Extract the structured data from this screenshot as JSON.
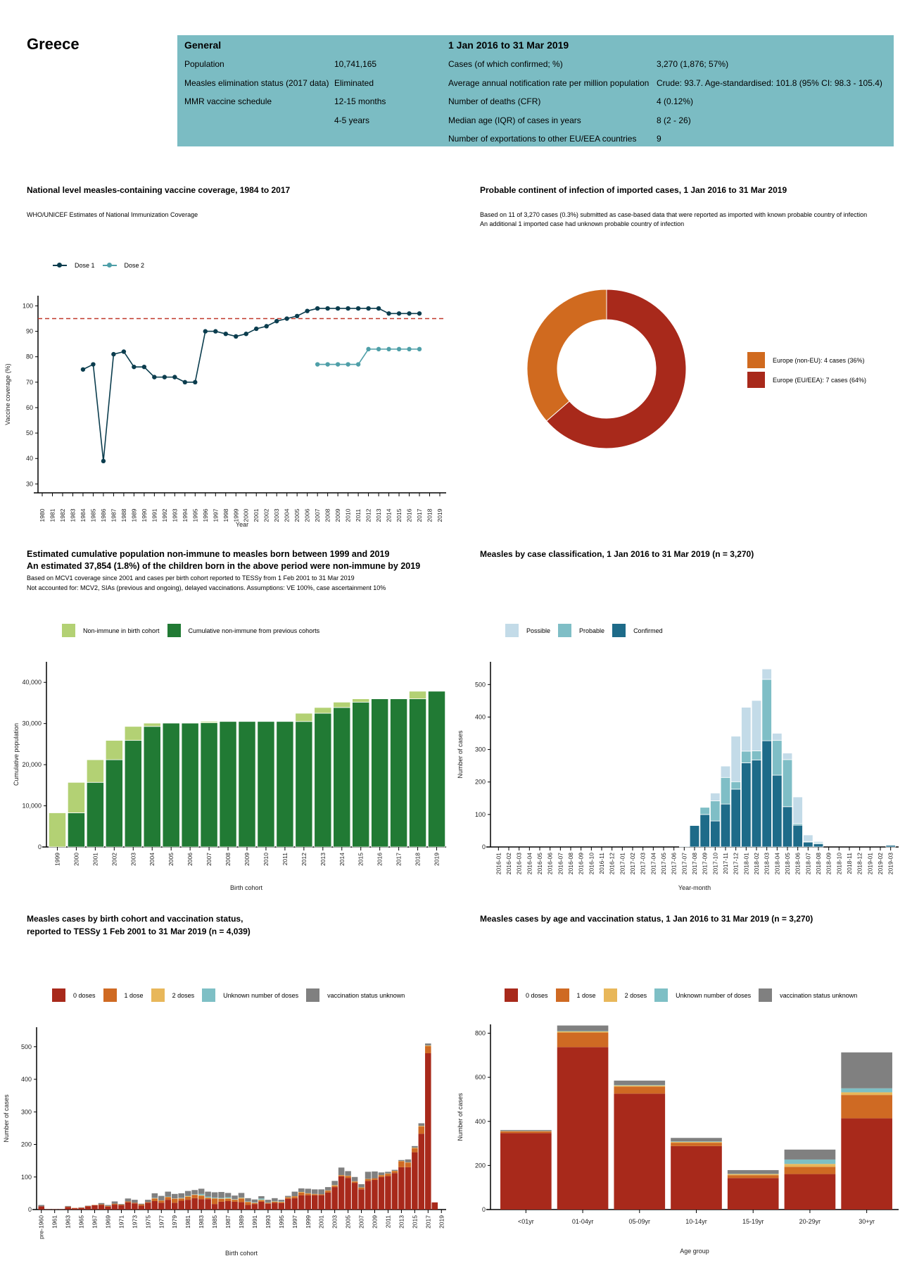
{
  "header": {
    "country": "Greece"
  },
  "info": {
    "general_heading": "General",
    "period_heading": "1 Jan 2016 to 31 Mar 2019",
    "general_rows": [
      {
        "label": "Population",
        "value": "10,741,165"
      },
      {
        "label": "Measles elimination status (2017 data)",
        "value": "Eliminated"
      },
      {
        "label": "MMR vaccine schedule",
        "value": "12-15 months"
      },
      {
        "label": "",
        "value": "4-5 years"
      }
    ],
    "period_rows": [
      {
        "label": "Cases (of which confirmed; %)",
        "value": "3,270 (1,876; 57%)"
      },
      {
        "label": "Average annual notification rate per million population",
        "value": "Crude: 93.7. Age-standardised: 101.8 (95% CI: 98.3 - 105.4)"
      },
      {
        "label": "Number of deaths (CFR)",
        "value": "4 (0.12%)"
      },
      {
        "label": "Median age (IQR) of cases in years",
        "value": "8 (2 - 26)"
      },
      {
        "label": "Number of exportations to other EU/EEA countries",
        "value": "9"
      }
    ]
  },
  "colors": {
    "table_bg": "#7bbcc3",
    "target_line": "#c0392b"
  },
  "chart_data": [
    {
      "type": "line",
      "title": "National level measles-containing vaccine coverage, 1984 to 2017",
      "subtitle": "WHO/UNICEF Estimates of National Immunization Coverage",
      "xlabel": "Year",
      "ylabel": "Vaccine coverage (%)",
      "xlim": [
        1980,
        2019
      ],
      "ylim": [
        26.5,
        104
      ],
      "yticks": [
        "30",
        "40",
        "50",
        "60",
        "70",
        "80",
        "90",
        "100"
      ],
      "xticks": [
        "1980",
        "1981",
        "1982",
        "1983",
        "1984",
        "1985",
        "1986",
        "1987",
        "1988",
        "1989",
        "1990",
        "1991",
        "1992",
        "1993",
        "1994",
        "1995",
        "1996",
        "1997",
        "1998",
        "1999",
        "2000",
        "2001",
        "2002",
        "2003",
        "2004",
        "2005",
        "2006",
        "2007",
        "2008",
        "2009",
        "2010",
        "2011",
        "2012",
        "2013",
        "2014",
        "2015",
        "2016",
        "2017",
        "2018",
        "2019"
      ],
      "target": 95,
      "legend_position": "top-left",
      "series": [
        {
          "name": "Dose 1",
          "color": "#0b3d4e",
          "x_start": 1984,
          "values": [
            75,
            77,
            39,
            81,
            82,
            76,
            76,
            72,
            72,
            72,
            70,
            70,
            90,
            90,
            89,
            88,
            89,
            91,
            92,
            94,
            95,
            96,
            98,
            99,
            99,
            99,
            99,
            99,
            99,
            99,
            97,
            97,
            97,
            97
          ]
        },
        {
          "name": "Dose 2",
          "color": "#4e9fa8",
          "x_start": 2007,
          "values": [
            77,
            77,
            77,
            77,
            77,
            83,
            83,
            83,
            83,
            83,
            83
          ]
        }
      ]
    },
    {
      "type": "pie",
      "donut": true,
      "title": "Probable continent of infection of imported cases, 1 Jan 2016 to 31 Mar 2019",
      "subtitle_lines": [
        "Based on 11 of 3,270 cases (0.3%) submitted as case-based data that were reported as imported with known probable country of infection",
        "An additional 1 imported case had unknown probable country of infection"
      ],
      "legend_position": "right",
      "slices": [
        {
          "name": "Europe (non-EU): 4 cases (36%)",
          "value": 4,
          "color": "#d06a1f"
        },
        {
          "name": "Europe (EU/EEA): 7 cases (64%)",
          "value": 7,
          "color": "#a8291b"
        }
      ]
    },
    {
      "type": "bar",
      "stacked": true,
      "title": "Estimated cumulative population non-immune to measles born between 1999 and 2019",
      "title2": "An estimated 37,854 (1.8%) of the children born in the above period were non-immune by 2019",
      "subtitle_lines": [
        "Based on MCV1 coverage since 2001 and cases per birth cohort reported to TESSy from 1 Feb 2001 to 31 Mar 2019",
        "Not accounted for: MCV2, SIAs (previous and ongoing), delayed vaccinations. Assumptions: VE 100%, case ascertainment 10%"
      ],
      "xlabel": "Birth cohort",
      "ylabel": "Cumulative population",
      "ylim": [
        0,
        45000
      ],
      "yticks": [
        0,
        10000,
        20000,
        30000,
        40000
      ],
      "ytick_labels": [
        "0",
        "10,000",
        "20,000",
        "30,000",
        "40,000"
      ],
      "legend_position": "top",
      "categories": [
        "1999",
        "2000",
        "2001",
        "2002",
        "2003",
        "2004",
        "2005",
        "2006",
        "2007",
        "2008",
        "2009",
        "2010",
        "2011",
        "2012",
        "2013",
        "2014",
        "2015",
        "2016",
        "2017",
        "2018",
        "2019"
      ],
      "series": [
        {
          "name": "Cumulative non-immune from previous cohorts",
          "color": "#217a34",
          "values": [
            0,
            8300,
            15700,
            21200,
            25900,
            29300,
            30100,
            30100,
            30200,
            30500,
            30500,
            30500,
            30500,
            30500,
            32500,
            33900,
            35200,
            36000,
            36000,
            36000,
            37854
          ]
        },
        {
          "name": "Non-immune in birth cohort",
          "color": "#b3d174",
          "values": [
            8300,
            7400,
            5500,
            4700,
            3400,
            800,
            0,
            50,
            300,
            0,
            0,
            0,
            0,
            2000,
            1400,
            1300,
            800,
            0,
            0,
            1854,
            0
          ]
        }
      ],
      "legend_order": [
        1,
        0
      ]
    },
    {
      "type": "bar",
      "stacked": true,
      "title": "Measles by case classification, 1 Jan 2016 to 31 Mar 2019 (n = 3,270)",
      "xlabel": "Year-month",
      "ylabel": "Number of cases",
      "ylim": [
        0,
        570
      ],
      "yticks": [
        0,
        100,
        200,
        300,
        400,
        500
      ],
      "ytick_labels": [
        "0",
        "100",
        "200",
        "300",
        "400",
        "500"
      ],
      "legend_position": "top",
      "categories": [
        "2016-01",
        "2016-02",
        "2016-03",
        "2016-04",
        "2016-05",
        "2016-06",
        "2016-07",
        "2016-08",
        "2016-09",
        "2016-10",
        "2016-11",
        "2016-12",
        "2017-01",
        "2017-02",
        "2017-03",
        "2017-04",
        "2017-05",
        "2017-06",
        "2017-07",
        "2017-08",
        "2017-09",
        "2017-10",
        "2017-11",
        "2017-12",
        "2018-01",
        "2018-02",
        "2018-03",
        "2018-04",
        "2018-05",
        "2018-06",
        "2018-07",
        "2018-08",
        "2018-09",
        "2018-10",
        "2018-11",
        "2018-12",
        "2019-01",
        "2019-02",
        "2019-03"
      ],
      "series": [
        {
          "name": "Confirmed",
          "color": "#1e6b89",
          "values": [
            0,
            0,
            0,
            0,
            0,
            0,
            0,
            0,
            0,
            0,
            0,
            0,
            0,
            0,
            0,
            0,
            0,
            0,
            2,
            66,
            100,
            80,
            132,
            178,
            259,
            268,
            327,
            221,
            124,
            67,
            15,
            10,
            0,
            0,
            0,
            0,
            0,
            0,
            5
          ]
        },
        {
          "name": "Probable",
          "color": "#7fbec6",
          "values": [
            0,
            0,
            0,
            0,
            0,
            0,
            0,
            0,
            0,
            0,
            0,
            0,
            0,
            0,
            0,
            0,
            0,
            0,
            0,
            0,
            22,
            62,
            82,
            23,
            36,
            28,
            189,
            107,
            145,
            5,
            2,
            3,
            0,
            0,
            0,
            0,
            0,
            0,
            0
          ]
        },
        {
          "name": "Possible",
          "color": "#c3dbe8",
          "values": [
            0,
            0,
            0,
            0,
            0,
            0,
            0,
            0,
            0,
            0,
            0,
            0,
            0,
            0,
            0,
            0,
            0,
            0,
            0,
            0,
            0,
            24,
            35,
            140,
            135,
            155,
            32,
            22,
            20,
            82,
            20,
            4,
            0,
            0,
            0,
            0,
            0,
            0,
            0
          ]
        }
      ],
      "legend_order": [
        2,
        1,
        0
      ]
    },
    {
      "type": "bar",
      "stacked": true,
      "title": "Measles cases by birth cohort and vaccination status,",
      "title2": "reported to TESSy 1 Feb 2001 to 31 Mar 2019 (n = 4,039)",
      "xlabel": "Birth cohort",
      "ylabel": "Number of cases",
      "ylim": [
        0,
        560
      ],
      "yticks": [
        0,
        100,
        200,
        300,
        400,
        500
      ],
      "ytick_labels": [
        "0",
        "100",
        "200",
        "300",
        "400",
        "500"
      ],
      "legend_position": "top",
      "categories": [
        "pre-1960",
        "1960",
        "1961",
        "1962",
        "1963",
        "1964",
        "1965",
        "1966",
        "1967",
        "1968",
        "1969",
        "1970",
        "1971",
        "1972",
        "1973",
        "1974",
        "1975",
        "1976",
        "1977",
        "1978",
        "1979",
        "1980",
        "1981",
        "1982",
        "1983",
        "1984",
        "1985",
        "1986",
        "1987",
        "1988",
        "1989",
        "1990",
        "1991",
        "1992",
        "1993",
        "1994",
        "1995",
        "1996",
        "1997",
        "1998",
        "1999",
        "2000",
        "2001",
        "2002",
        "2003",
        "2004",
        "2005",
        "2006",
        "2007",
        "2008",
        "2009",
        "2010",
        "2011",
        "2012",
        "2013",
        "2014",
        "2015",
        "2016",
        "2017",
        "2018",
        "2019"
      ],
      "series": [
        {
          "name": "0 doses",
          "color": "#a8291b",
          "values": [
            10,
            1,
            1,
            1,
            8,
            4,
            5,
            10,
            13,
            14,
            9,
            15,
            13,
            22,
            19,
            12,
            21,
            26,
            21,
            30,
            21,
            27,
            30,
            35,
            32,
            32,
            17,
            24,
            26,
            24,
            23,
            14,
            17,
            24,
            18,
            21,
            20,
            33,
            35,
            44,
            44,
            44,
            44,
            52,
            69,
            102,
            97,
            82,
            62,
            88,
            91,
            100,
            103,
            112,
            130,
            130,
            176,
            233,
            480,
            22,
            0
          ]
        },
        {
          "name": "1 dose",
          "color": "#cf6a23",
          "values": [
            0,
            0,
            0,
            0,
            1,
            1,
            1,
            1,
            1,
            2,
            2,
            3,
            2,
            3,
            2,
            4,
            2,
            8,
            6,
            8,
            12,
            7,
            9,
            10,
            10,
            4,
            17,
            9,
            7,
            6,
            11,
            9,
            3,
            4,
            3,
            3,
            3,
            4,
            5,
            8,
            5,
            3,
            3,
            6,
            4,
            3,
            6,
            4,
            5,
            5,
            5,
            5,
            7,
            6,
            18,
            14,
            12,
            22,
            22,
            0,
            0
          ]
        },
        {
          "name": "2 doses",
          "color": "#e8b75a",
          "values": [
            0,
            0,
            0,
            0,
            0,
            0,
            0,
            0,
            0,
            0,
            0,
            0,
            0,
            0,
            0,
            0,
            0,
            1,
            1,
            1,
            1,
            1,
            2,
            1,
            2,
            1,
            1,
            1,
            2,
            1,
            2,
            1,
            1,
            2,
            0,
            1,
            1,
            1,
            1,
            2,
            1,
            1,
            0,
            1,
            2,
            1,
            1,
            1,
            1,
            1,
            0,
            1,
            1,
            1,
            1,
            1,
            2,
            2,
            2,
            0,
            0
          ]
        },
        {
          "name": "Unknown number of doses",
          "color": "#7ebfc5",
          "values": [
            0,
            0,
            0,
            0,
            0,
            0,
            0,
            0,
            0,
            0,
            0,
            0,
            0,
            0,
            0,
            0,
            0,
            1,
            0,
            1,
            0,
            1,
            1,
            1,
            4,
            3,
            2,
            2,
            3,
            1,
            1,
            1,
            1,
            4,
            1,
            1,
            1,
            0,
            0,
            0,
            0,
            0,
            0,
            0,
            0,
            0,
            0,
            0,
            0,
            0,
            0,
            0,
            0,
            0,
            0,
            0,
            0,
            0,
            0,
            0,
            0
          ]
        },
        {
          "name": "vaccination status unknown",
          "color": "#808080",
          "values": [
            4,
            0,
            1,
            0,
            2,
            0,
            1,
            1,
            0,
            4,
            3,
            7,
            2,
            9,
            9,
            2,
            7,
            14,
            14,
            15,
            14,
            14,
            15,
            13,
            16,
            15,
            16,
            18,
            13,
            11,
            14,
            10,
            9,
            7,
            8,
            9,
            5,
            4,
            14,
            11,
            14,
            14,
            15,
            10,
            13,
            23,
            14,
            13,
            10,
            22,
            21,
            8,
            5,
            3,
            3,
            9,
            5,
            8,
            6,
            0,
            0
          ]
        }
      ],
      "legend_order": [
        0,
        1,
        2,
        3,
        4
      ]
    },
    {
      "type": "bar",
      "stacked": true,
      "title": "Measles cases by age and vaccination status, 1 Jan 2016 to 31 Mar 2019 (n = 3,270)",
      "xlabel": "Age group",
      "ylabel": "Number of cases",
      "ylim": [
        0,
        840
      ],
      "yticks": [
        0,
        200,
        400,
        600,
        800
      ],
      "ytick_labels": [
        "0",
        "200",
        "400",
        "600",
        "800"
      ],
      "legend_position": "top",
      "categories": [
        "<01yr",
        "01-04yr",
        "05-09yr",
        "10-14yr",
        "15-19yr",
        "20-29yr",
        "30+yr"
      ],
      "series": [
        {
          "name": "0 doses",
          "color": "#a8291b",
          "values": [
            347,
            737,
            526,
            288,
            143,
            161,
            414
          ]
        },
        {
          "name": "1 dose",
          "color": "#cf6a23",
          "values": [
            8,
            66,
            32,
            15,
            13,
            33,
            106
          ]
        },
        {
          "name": "2 doses",
          "color": "#e8b75a",
          "values": [
            1,
            5,
            5,
            4,
            5,
            13,
            12
          ]
        },
        {
          "name": "Unknown number of doses",
          "color": "#7ebfc5",
          "values": [
            1,
            2,
            2,
            2,
            1,
            20,
            18
          ]
        },
        {
          "name": "vaccination status unknown",
          "color": "#808080",
          "values": [
            4,
            25,
            20,
            16,
            17,
            45,
            163
          ]
        }
      ],
      "legend_order": [
        0,
        1,
        2,
        3,
        4
      ]
    }
  ]
}
